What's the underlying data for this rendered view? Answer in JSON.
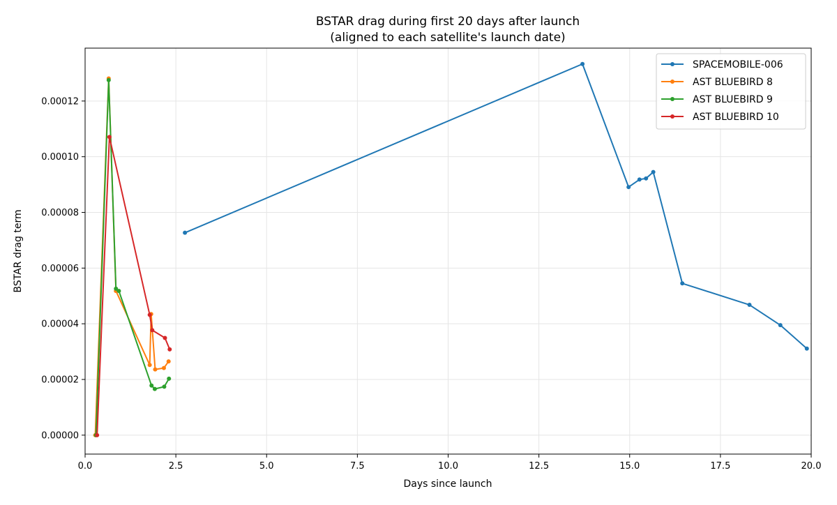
{
  "chart_data": {
    "type": "line",
    "title": "BSTAR drag during first 20 days after launch",
    "subtitle": "(aligned to each satellite's launch date)",
    "xlabel": "Days since launch",
    "ylabel": "BSTAR drag term",
    "xlim": [
      0,
      20
    ],
    "ylim": [
      -6.8e-06,
      0.000139
    ],
    "xticks": [
      0.0,
      2.5,
      5.0,
      7.5,
      10.0,
      12.5,
      15.0,
      17.5,
      20.0
    ],
    "xtick_labels": [
      "0.0",
      "2.5",
      "5.0",
      "7.5",
      "10.0",
      "12.5",
      "15.0",
      "17.5",
      "20.0"
    ],
    "yticks": [
      0,
      2e-05,
      4e-05,
      6e-05,
      8e-05,
      0.0001,
      0.00012
    ],
    "ytick_labels": [
      "0.00000",
      "0.00002",
      "0.00004",
      "0.00006",
      "0.00008",
      "0.00010",
      "0.00012"
    ],
    "grid": true,
    "legend_position": "top-right",
    "series": [
      {
        "name": "SPACEMOBILE-006",
        "color": "#1f77b4",
        "x": [
          2.75,
          13.7,
          14.97,
          15.27,
          15.45,
          15.65,
          16.45,
          18.3,
          19.15,
          19.88
        ],
        "y": [
          7.27e-05,
          0.0001333,
          8.91e-05,
          9.18e-05,
          9.22e-05,
          9.45e-05,
          5.45e-05,
          4.68e-05,
          3.95e-05,
          3.11e-05
        ]
      },
      {
        "name": "AST BLUEBIRD 8",
        "color": "#ff7f0e",
        "x": [
          0.28,
          0.65,
          0.85,
          1.78,
          1.82,
          1.93,
          2.17,
          2.3
        ],
        "y": [
          0.0,
          0.0001281,
          5.18e-05,
          2.52e-05,
          4.35e-05,
          2.36e-05,
          2.41e-05,
          2.65e-05
        ]
      },
      {
        "name": "AST BLUEBIRD 9",
        "color": "#2ca02c",
        "x": [
          0.3,
          0.65,
          0.85,
          0.93,
          1.83,
          1.92,
          2.18,
          2.31
        ],
        "y": [
          0.0,
          0.0001275,
          5.26e-05,
          5.18e-05,
          1.78e-05,
          1.66e-05,
          1.74e-05,
          2.03e-05
        ]
      },
      {
        "name": "AST BLUEBIRD 10",
        "color": "#d62728",
        "x": [
          0.33,
          0.67,
          1.78,
          1.85,
          2.2,
          2.33
        ],
        "y": [
          0.0,
          0.0001071,
          4.32e-05,
          3.77e-05,
          3.49e-05,
          3.08e-05
        ]
      }
    ]
  }
}
